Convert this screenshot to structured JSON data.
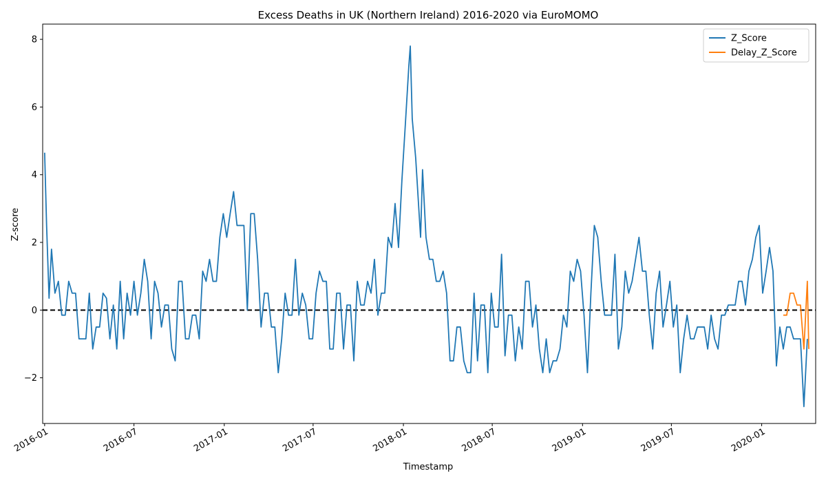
{
  "chart_data": {
    "type": "line",
    "title": "Excess Deaths in UK (Northern Ireland) 2016-2020 via EuroMOMO",
    "xlabel": "Timestamp",
    "ylabel": "Z-score",
    "xlim": [
      "2015-12-28",
      "2020-04-20"
    ],
    "ylim": [
      -3.35,
      8.45
    ],
    "x_ticks": [
      "2016-01",
      "2016-07",
      "2017-01",
      "2017-07",
      "2018-01",
      "2018-07",
      "2019-01",
      "2019-07",
      "2020-01"
    ],
    "y_ticks": [
      -2,
      0,
      2,
      4,
      6,
      8
    ],
    "reference_line": {
      "y": 0,
      "style": "dashed",
      "color": "#000000"
    },
    "grid": false,
    "legend_position": "top-right",
    "series": [
      {
        "name": "Z_Score",
        "color": "#1f77b4",
        "points": [
          [
            "2016-01-01",
            4.65
          ],
          [
            "2016-01-05",
            2.5
          ],
          [
            "2016-01-10",
            0.35
          ],
          [
            "2016-01-15",
            1.8
          ],
          [
            "2016-01-22",
            0.5
          ],
          [
            "2016-01-29",
            0.85
          ],
          [
            "2016-02-05",
            -0.15
          ],
          [
            "2016-02-12",
            -0.15
          ],
          [
            "2016-02-19",
            0.85
          ],
          [
            "2016-02-26",
            0.5
          ],
          [
            "2016-03-04",
            0.5
          ],
          [
            "2016-03-11",
            -0.85
          ],
          [
            "2016-03-18",
            -0.85
          ],
          [
            "2016-03-25",
            -0.85
          ],
          [
            "2016-04-01",
            0.5
          ],
          [
            "2016-04-08",
            -1.15
          ],
          [
            "2016-04-15",
            -0.5
          ],
          [
            "2016-04-22",
            -0.5
          ],
          [
            "2016-04-29",
            0.5
          ],
          [
            "2016-05-06",
            0.35
          ],
          [
            "2016-05-13",
            -0.85
          ],
          [
            "2016-05-20",
            0.15
          ],
          [
            "2016-05-27",
            -1.15
          ],
          [
            "2016-06-03",
            0.85
          ],
          [
            "2016-06-10",
            -0.85
          ],
          [
            "2016-06-17",
            0.5
          ],
          [
            "2016-06-24",
            -0.15
          ],
          [
            "2016-07-01",
            0.85
          ],
          [
            "2016-07-08",
            -0.15
          ],
          [
            "2016-07-15",
            0.5
          ],
          [
            "2016-07-22",
            1.5
          ],
          [
            "2016-07-29",
            0.85
          ],
          [
            "2016-08-05",
            -0.85
          ],
          [
            "2016-08-12",
            0.85
          ],
          [
            "2016-08-19",
            0.5
          ],
          [
            "2016-08-26",
            -0.5
          ],
          [
            "2016-09-02",
            0.15
          ],
          [
            "2016-09-09",
            0.15
          ],
          [
            "2016-09-16",
            -1.15
          ],
          [
            "2016-09-23",
            -1.5
          ],
          [
            "2016-09-30",
            0.85
          ],
          [
            "2016-10-07",
            0.85
          ],
          [
            "2016-10-14",
            -0.85
          ],
          [
            "2016-10-21",
            -0.85
          ],
          [
            "2016-10-28",
            -0.15
          ],
          [
            "2016-11-04",
            -0.15
          ],
          [
            "2016-11-11",
            -0.85
          ],
          [
            "2016-11-18",
            1.15
          ],
          [
            "2016-11-25",
            0.85
          ],
          [
            "2016-12-02",
            1.5
          ],
          [
            "2016-12-09",
            0.85
          ],
          [
            "2016-12-16",
            0.85
          ],
          [
            "2016-12-23",
            2.15
          ],
          [
            "2016-12-30",
            2.85
          ],
          [
            "2017-01-06",
            2.15
          ],
          [
            "2017-01-13",
            2.85
          ],
          [
            "2017-01-20",
            3.5
          ],
          [
            "2017-01-27",
            2.5
          ],
          [
            "2017-02-03",
            2.5
          ],
          [
            "2017-02-10",
            2.5
          ],
          [
            "2017-02-17",
            0.0
          ],
          [
            "2017-02-24",
            2.85
          ],
          [
            "2017-03-03",
            2.85
          ],
          [
            "2017-03-10",
            1.5
          ],
          [
            "2017-03-17",
            -0.5
          ],
          [
            "2017-03-24",
            0.5
          ],
          [
            "2017-03-31",
            0.5
          ],
          [
            "2017-04-07",
            -0.5
          ],
          [
            "2017-04-14",
            -0.5
          ],
          [
            "2017-04-21",
            -1.85
          ],
          [
            "2017-04-28",
            -0.85
          ],
          [
            "2017-05-05",
            0.5
          ],
          [
            "2017-05-12",
            -0.15
          ],
          [
            "2017-05-19",
            -0.15
          ],
          [
            "2017-05-26",
            1.5
          ],
          [
            "2017-06-02",
            -0.15
          ],
          [
            "2017-06-09",
            0.5
          ],
          [
            "2017-06-16",
            0.15
          ],
          [
            "2017-06-23",
            -0.85
          ],
          [
            "2017-06-30",
            -0.85
          ],
          [
            "2017-07-07",
            0.5
          ],
          [
            "2017-07-14",
            1.15
          ],
          [
            "2017-07-21",
            0.85
          ],
          [
            "2017-07-28",
            0.85
          ],
          [
            "2017-08-04",
            -1.15
          ],
          [
            "2017-08-11",
            -1.15
          ],
          [
            "2017-08-18",
            0.5
          ],
          [
            "2017-08-25",
            0.5
          ],
          [
            "2017-09-01",
            -1.15
          ],
          [
            "2017-09-08",
            0.15
          ],
          [
            "2017-09-15",
            0.15
          ],
          [
            "2017-09-22",
            -1.5
          ],
          [
            "2017-09-29",
            0.85
          ],
          [
            "2017-10-06",
            0.15
          ],
          [
            "2017-10-13",
            0.15
          ],
          [
            "2017-10-20",
            0.85
          ],
          [
            "2017-10-27",
            0.5
          ],
          [
            "2017-11-03",
            1.5
          ],
          [
            "2017-11-10",
            -0.15
          ],
          [
            "2017-11-17",
            0.5
          ],
          [
            "2017-11-24",
            0.5
          ],
          [
            "2017-12-01",
            2.15
          ],
          [
            "2017-12-08",
            1.85
          ],
          [
            "2017-12-15",
            3.15
          ],
          [
            "2017-12-22",
            1.85
          ],
          [
            "2017-12-29",
            3.85
          ],
          [
            "2018-01-05",
            5.5
          ],
          [
            "2018-01-12",
            7.2
          ],
          [
            "2018-01-15",
            7.8
          ],
          [
            "2018-01-19",
            5.65
          ],
          [
            "2018-01-26",
            4.5
          ],
          [
            "2018-02-02",
            2.85
          ],
          [
            "2018-02-05",
            2.15
          ],
          [
            "2018-02-09",
            4.15
          ],
          [
            "2018-02-16",
            2.15
          ],
          [
            "2018-02-23",
            1.5
          ],
          [
            "2018-03-02",
            1.5
          ],
          [
            "2018-03-09",
            0.85
          ],
          [
            "2018-03-16",
            0.85
          ],
          [
            "2018-03-23",
            1.15
          ],
          [
            "2018-03-30",
            0.5
          ],
          [
            "2018-04-06",
            -1.5
          ],
          [
            "2018-04-13",
            -1.5
          ],
          [
            "2018-04-20",
            -0.5
          ],
          [
            "2018-04-27",
            -0.5
          ],
          [
            "2018-05-04",
            -1.5
          ],
          [
            "2018-05-11",
            -1.85
          ],
          [
            "2018-05-18",
            -1.85
          ],
          [
            "2018-05-25",
            0.5
          ],
          [
            "2018-06-01",
            -1.5
          ],
          [
            "2018-06-08",
            0.15
          ],
          [
            "2018-06-15",
            0.15
          ],
          [
            "2018-06-22",
            -1.85
          ],
          [
            "2018-06-29",
            0.5
          ],
          [
            "2018-07-06",
            -0.5
          ],
          [
            "2018-07-13",
            -0.5
          ],
          [
            "2018-07-20",
            1.65
          ],
          [
            "2018-07-27",
            -1.35
          ],
          [
            "2018-08-03",
            -0.15
          ],
          [
            "2018-08-10",
            -0.15
          ],
          [
            "2018-08-17",
            -1.5
          ],
          [
            "2018-08-24",
            -0.5
          ],
          [
            "2018-08-31",
            -1.15
          ],
          [
            "2018-09-07",
            0.85
          ],
          [
            "2018-09-14",
            0.85
          ],
          [
            "2018-09-21",
            -0.5
          ],
          [
            "2018-09-28",
            0.15
          ],
          [
            "2018-10-05",
            -1.15
          ],
          [
            "2018-10-12",
            -1.85
          ],
          [
            "2018-10-19",
            -0.85
          ],
          [
            "2018-10-26",
            -1.85
          ],
          [
            "2018-11-02",
            -1.5
          ],
          [
            "2018-11-09",
            -1.5
          ],
          [
            "2018-11-16",
            -1.15
          ],
          [
            "2018-11-23",
            -0.15
          ],
          [
            "2018-11-30",
            -0.5
          ],
          [
            "2018-12-07",
            1.15
          ],
          [
            "2018-12-14",
            0.85
          ],
          [
            "2018-12-21",
            1.5
          ],
          [
            "2018-12-28",
            1.15
          ],
          [
            "2019-01-04",
            -0.15
          ],
          [
            "2019-01-11",
            -1.85
          ],
          [
            "2019-01-18",
            0.5
          ],
          [
            "2019-01-25",
            2.5
          ],
          [
            "2019-02-01",
            2.15
          ],
          [
            "2019-02-08",
            0.85
          ],
          [
            "2019-02-15",
            -0.15
          ],
          [
            "2019-02-22",
            -0.15
          ],
          [
            "2019-03-01",
            -0.15
          ],
          [
            "2019-03-08",
            1.65
          ],
          [
            "2019-03-15",
            -1.15
          ],
          [
            "2019-03-22",
            -0.5
          ],
          [
            "2019-03-29",
            1.15
          ],
          [
            "2019-04-05",
            0.5
          ],
          [
            "2019-04-12",
            0.85
          ],
          [
            "2019-04-19",
            1.5
          ],
          [
            "2019-04-26",
            2.15
          ],
          [
            "2019-05-03",
            1.15
          ],
          [
            "2019-05-10",
            1.15
          ],
          [
            "2019-05-17",
            -0.15
          ],
          [
            "2019-05-24",
            -1.15
          ],
          [
            "2019-05-31",
            0.5
          ],
          [
            "2019-06-07",
            1.15
          ],
          [
            "2019-06-14",
            -0.5
          ],
          [
            "2019-06-21",
            0.15
          ],
          [
            "2019-06-28",
            0.85
          ],
          [
            "2019-07-05",
            -0.5
          ],
          [
            "2019-07-12",
            0.15
          ],
          [
            "2019-07-19",
            -1.85
          ],
          [
            "2019-07-26",
            -0.85
          ],
          [
            "2019-08-02",
            -0.15
          ],
          [
            "2019-08-09",
            -0.85
          ],
          [
            "2019-08-16",
            -0.85
          ],
          [
            "2019-08-23",
            -0.5
          ],
          [
            "2019-08-30",
            -0.5
          ],
          [
            "2019-09-06",
            -0.5
          ],
          [
            "2019-09-13",
            -1.15
          ],
          [
            "2019-09-20",
            -0.15
          ],
          [
            "2019-09-27",
            -0.85
          ],
          [
            "2019-10-04",
            -1.15
          ],
          [
            "2019-10-11",
            -0.15
          ],
          [
            "2019-10-18",
            -0.15
          ],
          [
            "2019-10-25",
            0.15
          ],
          [
            "2019-11-01",
            0.15
          ],
          [
            "2019-11-08",
            0.15
          ],
          [
            "2019-11-15",
            0.85
          ],
          [
            "2019-11-22",
            0.85
          ],
          [
            "2019-11-29",
            0.15
          ],
          [
            "2019-12-06",
            1.15
          ],
          [
            "2019-12-13",
            1.5
          ],
          [
            "2019-12-20",
            2.15
          ],
          [
            "2019-12-27",
            2.5
          ],
          [
            "2020-01-03",
            0.5
          ],
          [
            "2020-01-10",
            1.15
          ],
          [
            "2020-01-17",
            1.85
          ],
          [
            "2020-01-24",
            1.15
          ],
          [
            "2020-01-31",
            -1.65
          ],
          [
            "2020-02-07",
            -0.5
          ],
          [
            "2020-02-14",
            -1.15
          ],
          [
            "2020-02-21",
            -0.5
          ],
          [
            "2020-02-28",
            -0.5
          ],
          [
            "2020-03-06",
            -0.85
          ],
          [
            "2020-03-13",
            -0.85
          ],
          [
            "2020-03-20",
            -0.85
          ],
          [
            "2020-03-27",
            -2.85
          ],
          [
            "2020-04-03",
            -0.85
          ]
        ]
      },
      {
        "name": "Delay_Z_Score",
        "color": "#ff7f0e",
        "points": [
          [
            "2020-02-14",
            -0.15
          ],
          [
            "2020-02-21",
            -0.15
          ],
          [
            "2020-02-28",
            0.5
          ],
          [
            "2020-03-06",
            0.5
          ],
          [
            "2020-03-13",
            0.15
          ],
          [
            "2020-03-20",
            0.15
          ],
          [
            "2020-03-27",
            -1.15
          ],
          [
            "2020-04-03",
            0.85
          ],
          [
            "2020-04-06",
            -1.15
          ]
        ]
      }
    ]
  }
}
